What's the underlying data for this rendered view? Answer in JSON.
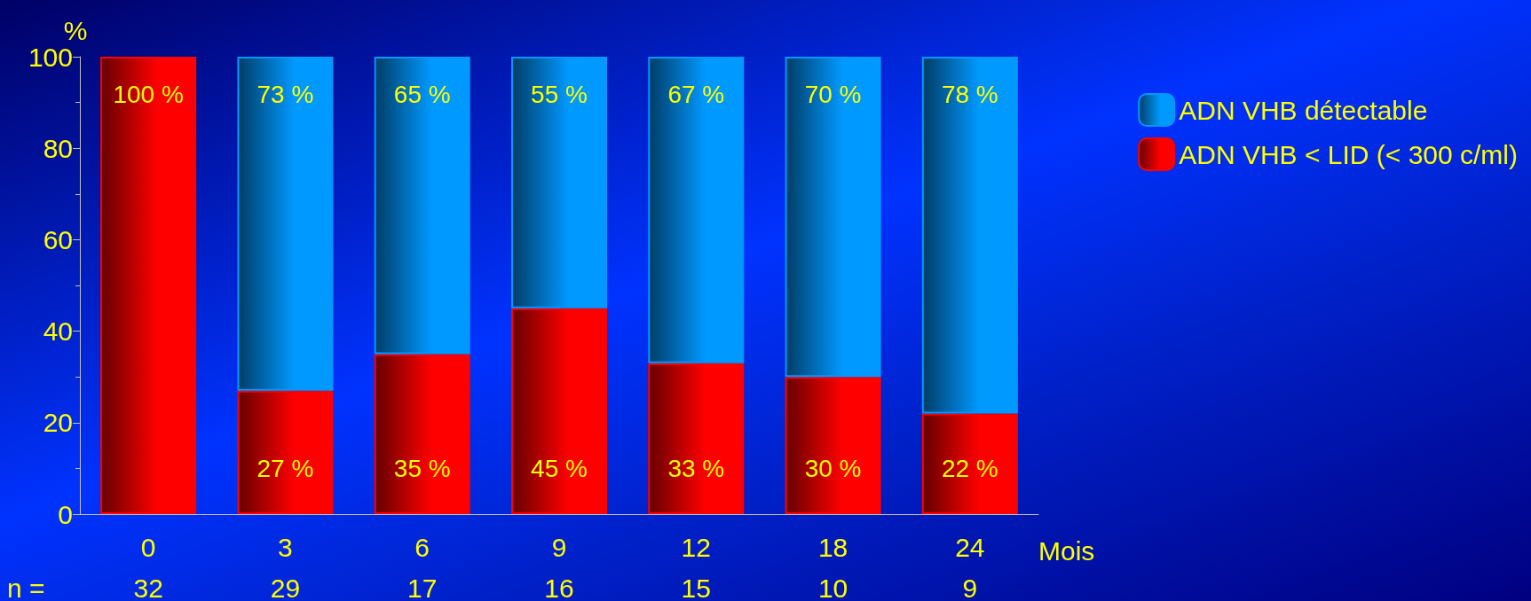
{
  "chart_data": {
    "type": "bar",
    "stacked": true,
    "ylabel": "%",
    "xlabel": "Mois",
    "categories": [
      "0",
      "3",
      "6",
      "9",
      "12",
      "18",
      "24"
    ],
    "series": [
      {
        "name": "ADN VHB < LID (< 300 c/ml)",
        "color": "#ff0000",
        "values": [
          100,
          27,
          35,
          45,
          33,
          30,
          22
        ],
        "value_labels": [
          "100 %",
          "27 %",
          "35 %",
          "45 %",
          "33 %",
          "30 %",
          "22 %"
        ]
      },
      {
        "name": "ADN VHB détectable",
        "color": "#0099ff",
        "values": [
          null,
          73,
          65,
          55,
          67,
          70,
          78
        ],
        "value_labels": [
          null,
          "73 %",
          "65 %",
          "55 %",
          "67 %",
          "70 %",
          "78 %"
        ]
      }
    ],
    "ylim": [
      0,
      100
    ],
    "yticks": [
      0,
      20,
      40,
      60,
      80,
      100
    ],
    "legend": "right",
    "grid": false,
    "annotations": [
      "n =",
      "32",
      "29",
      "17",
      "16",
      "15",
      "10",
      "9"
    ]
  }
}
